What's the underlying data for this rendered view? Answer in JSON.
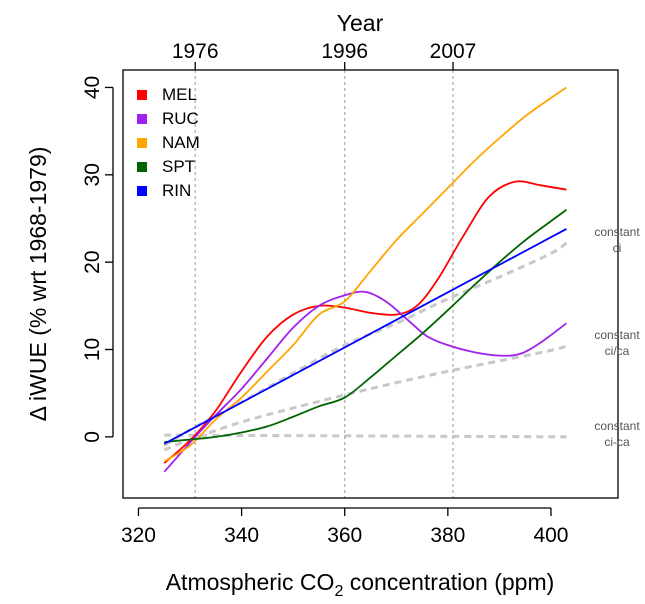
{
  "chart_data": {
    "type": "line",
    "xlabel_prefix": "Atmospheric CO",
    "xlabel_sub": "2",
    "xlabel_suffix": " concentration (ppm)",
    "ylabel": "Δ iWUE  (% wrt 1968-1979)",
    "top_axis_title": "Year",
    "xlim": [
      317,
      413
    ],
    "ylim": [
      -7,
      42
    ],
    "x_ticks": [
      320,
      340,
      360,
      380,
      400
    ],
    "y_ticks": [
      0,
      10,
      20,
      30,
      40
    ],
    "year_markers": [
      {
        "label": "1976",
        "co2": 331
      },
      {
        "label": "1996",
        "co2": 360
      },
      {
        "label": "2007",
        "co2": 381
      }
    ],
    "series": [
      {
        "name": "MEL",
        "color": "#ff0000",
        "points": [
          [
            325,
            -3
          ],
          [
            328,
            -1.5
          ],
          [
            331,
            0.2
          ],
          [
            335,
            3
          ],
          [
            340,
            7.5
          ],
          [
            345,
            11.5
          ],
          [
            350,
            14
          ],
          [
            355,
            15
          ],
          [
            360,
            14.8
          ],
          [
            365,
            14.2
          ],
          [
            370,
            14
          ],
          [
            374,
            15
          ],
          [
            378,
            18
          ],
          [
            383,
            23
          ],
          [
            388,
            27.5
          ],
          [
            393,
            29.2
          ],
          [
            398,
            28.8
          ],
          [
            403,
            28.3
          ]
        ]
      },
      {
        "name": "RUC",
        "color": "#a020f0",
        "points": [
          [
            325,
            -4
          ],
          [
            328,
            -2
          ],
          [
            331,
            0
          ],
          [
            335,
            2.5
          ],
          [
            340,
            5.5
          ],
          [
            345,
            9
          ],
          [
            350,
            12.5
          ],
          [
            355,
            15
          ],
          [
            360,
            16.2
          ],
          [
            364,
            16.6
          ],
          [
            368,
            15.5
          ],
          [
            372,
            13.5
          ],
          [
            376,
            11.5
          ],
          [
            380,
            10.5
          ],
          [
            385,
            9.7
          ],
          [
            390,
            9.3
          ],
          [
            394,
            9.5
          ],
          [
            398,
            10.8
          ],
          [
            403,
            13
          ]
        ]
      },
      {
        "name": "NAM",
        "color": "#ffa500",
        "points": [
          [
            325,
            -2.8
          ],
          [
            330,
            -1
          ],
          [
            335,
            2
          ],
          [
            340,
            4.5
          ],
          [
            345,
            7.5
          ],
          [
            350,
            10.5
          ],
          [
            355,
            14
          ],
          [
            360,
            15.5
          ],
          [
            365,
            19
          ],
          [
            370,
            22.5
          ],
          [
            375,
            25.5
          ],
          [
            380,
            28.5
          ],
          [
            385,
            31.5
          ],
          [
            390,
            34.2
          ],
          [
            395,
            36.7
          ],
          [
            400,
            38.8
          ],
          [
            403,
            40
          ]
        ]
      },
      {
        "name": "SPT",
        "color": "#006400",
        "points": [
          [
            325,
            -0.6
          ],
          [
            330,
            -0.3
          ],
          [
            335,
            0
          ],
          [
            340,
            0.5
          ],
          [
            345,
            1.2
          ],
          [
            350,
            2.3
          ],
          [
            355,
            3.5
          ],
          [
            360,
            4.5
          ],
          [
            365,
            6.8
          ],
          [
            370,
            9.3
          ],
          [
            375,
            11.8
          ],
          [
            380,
            14.5
          ],
          [
            385,
            17.3
          ],
          [
            390,
            20
          ],
          [
            395,
            22.5
          ],
          [
            400,
            24.7
          ],
          [
            403,
            26
          ]
        ]
      },
      {
        "name": "RIN",
        "color": "#0000ff",
        "points": [
          [
            325,
            -0.8
          ],
          [
            403,
            23.8
          ]
        ]
      }
    ],
    "reference_lines": [
      {
        "label_line1": "constant",
        "label_line2": "ci",
        "points": [
          [
            325,
            -1
          ],
          [
            330,
            0.8
          ],
          [
            340,
            4
          ],
          [
            350,
            7.3
          ],
          [
            360,
            10.5
          ],
          [
            370,
            13
          ],
          [
            380,
            15.8
          ],
          [
            390,
            18.3
          ],
          [
            400,
            21
          ],
          [
            403,
            22.2
          ]
        ]
      },
      {
        "label_line1": "constant",
        "label_line2": "ci/ca",
        "points": [
          [
            325,
            -1.5
          ],
          [
            330,
            -0.3
          ],
          [
            340,
            1.7
          ],
          [
            350,
            3.3
          ],
          [
            360,
            4.8
          ],
          [
            370,
            6.2
          ],
          [
            380,
            7.5
          ],
          [
            390,
            8.7
          ],
          [
            400,
            9.9
          ],
          [
            403,
            10.4
          ]
        ]
      },
      {
        "label_line1": "constant",
        "label_line2": "ci-ca",
        "points": [
          [
            325,
            0.2
          ],
          [
            403,
            0
          ]
        ]
      }
    ],
    "legend_position": "top-left"
  }
}
